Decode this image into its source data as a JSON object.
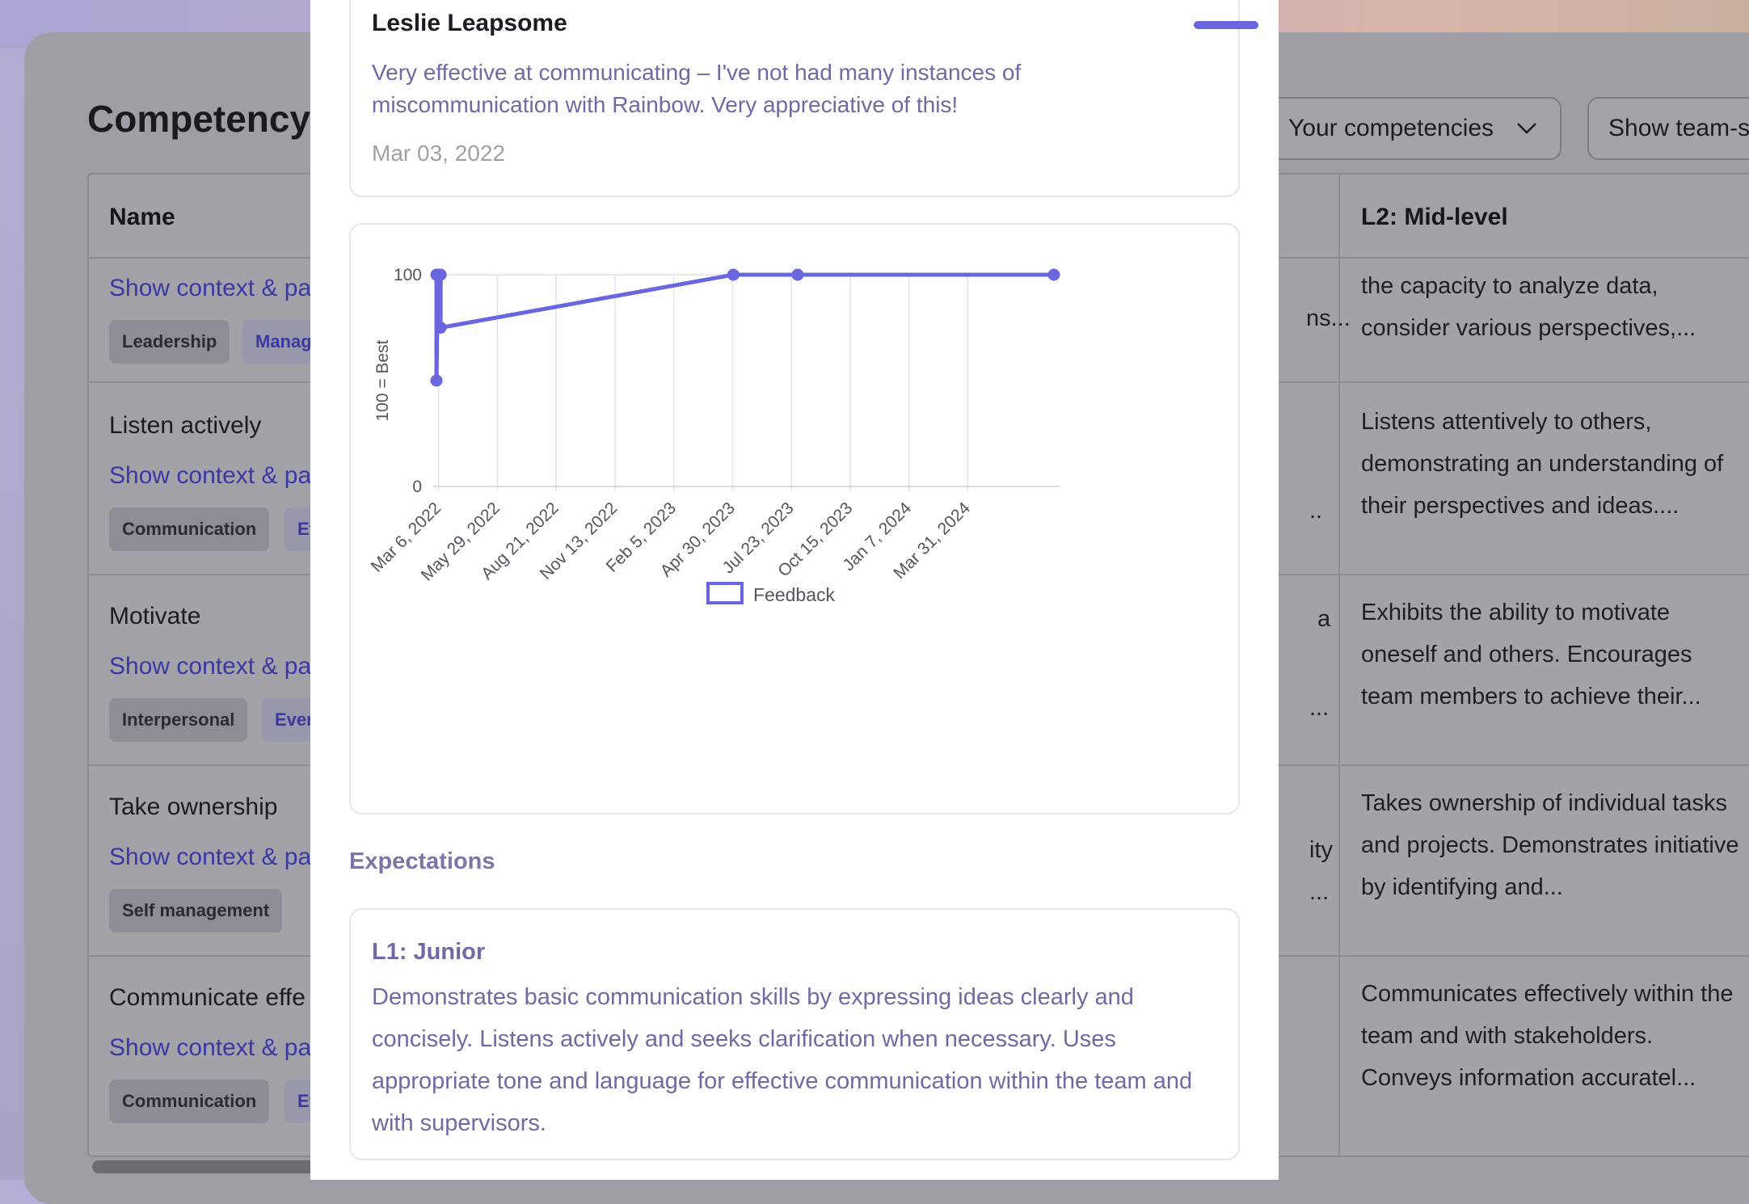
{
  "page": {
    "title": "Competency",
    "dropdown_label": "Your competencies",
    "team_button_label": "Show team-s"
  },
  "table": {
    "headers": {
      "name": "Name",
      "l2": "L2: Mid-level"
    },
    "rows": [
      {
        "name": "",
        "link": "Show context & pa",
        "tags": [
          "Leadership",
          "Manag"
        ],
        "partial": [
          "",
          "ns..."
        ],
        "l2": "the capacity to analyze data, consider various perspectives,..."
      },
      {
        "name": "Listen actively",
        "link": "Show context & pa",
        "tags": [
          "Communication",
          "Ev"
        ],
        "partial": [
          "",
          ".."
        ],
        "l2": "Listens attentively to others, demonstrating an understanding of their perspectives and ideas...."
      },
      {
        "name": "Motivate",
        "link": "Show context & pa",
        "tags": [
          "Interpersonal",
          "Ever"
        ],
        "partial": [
          "a",
          "..."
        ],
        "l2": "Exhibits the ability to motivate oneself and others. Encourages team members to achieve their..."
      },
      {
        "name": "Take ownership",
        "link": "Show context & pa",
        "tags": [
          "Self management",
          ""
        ],
        "partial": [
          "ity",
          "..."
        ],
        "l2": "Takes ownership of individual tasks and projects. Demonstrates initiative by identifying and..."
      },
      {
        "name": "Communicate effe",
        "link": "Show context & pa",
        "tags": [
          "Communication",
          "Ev"
        ],
        "partial": [
          "",
          ""
        ],
        "l2": "Communicates effectively within the team and with stakeholders. Conveys information accuratel..."
      }
    ]
  },
  "modal": {
    "feedback": {
      "author": "Leslie Leapsome",
      "text": "Very effective at communicating – I've not had many instances of miscommunication with Rainbow. Very appreciative of this!",
      "date": "Mar 03, 2022"
    },
    "expectations_label": "Expectations",
    "expectation": {
      "level": "L1: Junior",
      "text": "Demonstrates basic communication skills by expressing ideas clearly and concisely. Listens actively and seeks clarification when necessary. Uses appropriate tone and language for effective communication within the team and with supervisors."
    }
  },
  "chart_data": {
    "type": "line",
    "ylabel": "100 = Best",
    "ylim": [
      0,
      100
    ],
    "y_ticks": [
      "0",
      "100"
    ],
    "x_ticks": [
      "Mar 6, 2022",
      "May 29, 2022",
      "Aug 21, 2022",
      "Nov 13, 2022",
      "Feb 5, 2023",
      "Apr 30, 2023",
      "Jul 23, 2023",
      "Oct 15, 2023",
      "Jan 7, 2024",
      "Mar 31, 2024"
    ],
    "x_range": [
      "2022-03-03",
      "2024-08-01"
    ],
    "grid": true,
    "legend": "bottom",
    "color": "#6a66e0",
    "series": [
      {
        "name": "Feedback",
        "points": [
          {
            "x": "2022-03-03",
            "y": 100
          },
          {
            "x": "2022-03-03",
            "y": 50
          },
          {
            "x": "2022-03-05",
            "y": 100
          },
          {
            "x": "2022-03-09",
            "y": 100
          },
          {
            "x": "2022-03-09",
            "y": 75
          },
          {
            "x": "2023-05-01",
            "y": 100
          },
          {
            "x": "2023-08-01",
            "y": 100
          },
          {
            "x": "2024-08-01",
            "y": 100
          }
        ]
      }
    ]
  }
}
